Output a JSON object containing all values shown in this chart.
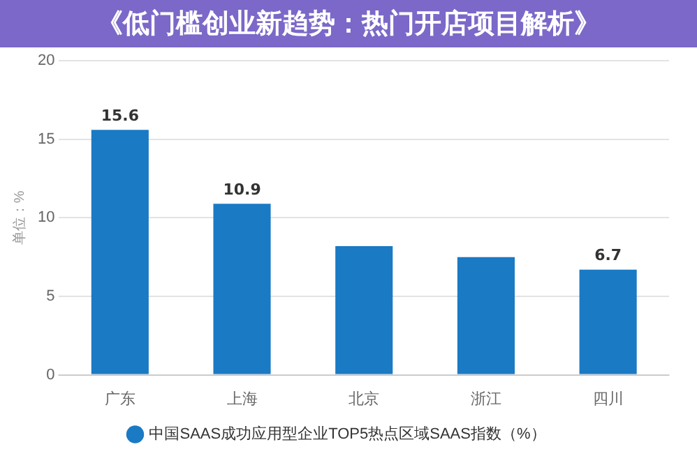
{
  "chart_data": {
    "type": "bar",
    "title": "《低门槛创业新趋势：热门开店项目解析》",
    "ylabel": "单位：%",
    "categories": [
      "广东",
      "上海",
      "北京",
      "浙江",
      "四川"
    ],
    "series": [
      {
        "name": "中国SAAS成功应用型企业TOP5热点区域SAAS指数（%）",
        "color": "#1a7ac4",
        "values": [
          15.6,
          10.9,
          8.2,
          7.5,
          6.7
        ]
      }
    ],
    "value_labels": [
      "15.6",
      "10.9",
      null,
      null,
      "6.7"
    ],
    "ylim": [
      0,
      20
    ],
    "yticks": [
      0,
      5,
      10,
      15,
      20
    ],
    "grid": "y",
    "legend": "bottom"
  }
}
